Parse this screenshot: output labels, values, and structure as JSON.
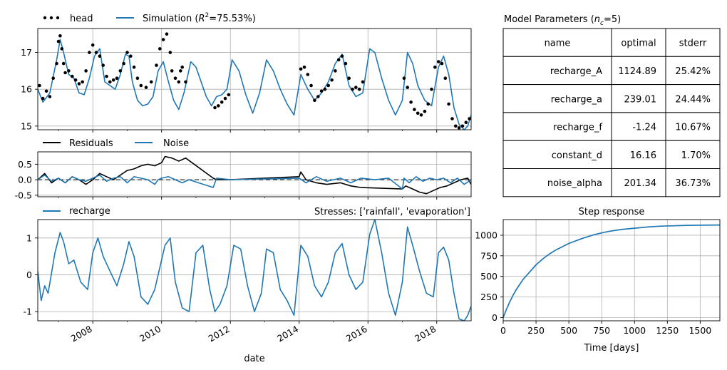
{
  "colors": {
    "head": "#000000",
    "simulation": "#1f77b4",
    "residuals": "#000000",
    "noise": "#1f77b4",
    "recharge": "#1f77b4",
    "step": "#1f77b4"
  },
  "params_title": "Model Parameters ($n_c$=5)",
  "params_title_main": "Model Parameters (",
  "params_title_sym": "n",
  "params_title_sub": "c",
  "params_title_tail": "=5)",
  "table": {
    "headers": [
      "name",
      "optimal",
      "stderr"
    ],
    "rows": [
      [
        "recharge_A",
        "1124.89",
        "25.42%"
      ],
      [
        "recharge_a",
        "239.01",
        "24.44%"
      ],
      [
        "recharge_f",
        "-1.24",
        "10.67%"
      ],
      [
        "constant_d",
        "16.16",
        "1.70%"
      ],
      [
        "noise_alpha",
        "201.34",
        "36.73%"
      ]
    ]
  },
  "chart_data": [
    {
      "id": "head_panel",
      "type": "line",
      "xlim": [
        2006.4,
        2019.0
      ],
      "ylim": [
        14.9,
        17.65
      ],
      "yticks": [
        "15",
        "16",
        "17"
      ],
      "grid": true,
      "legend": {
        "entries": [
          "head",
          "Simulation ($R^2$=75.53%)"
        ],
        "placement": "top-left above axes"
      },
      "legend_head": "head",
      "legend_sim_main": "Simulation (",
      "legend_sim_sym": "R",
      "legend_sim_sup": "2",
      "legend_sim_tail": "=75.53%)",
      "series": [
        {
          "name": "Simulation ($R^2$=75.53%)",
          "style": "line",
          "x": [
            2006.4,
            2006.55,
            2006.75,
            2006.95,
            2007.05,
            2007.15,
            2007.3,
            2007.45,
            2007.6,
            2007.75,
            2007.9,
            2008.05,
            2008.2,
            2008.35,
            2008.5,
            2008.65,
            2008.8,
            2008.95,
            2009.05,
            2009.15,
            2009.3,
            2009.45,
            2009.6,
            2009.75,
            2009.9,
            2010.05,
            2010.2,
            2010.35,
            2010.5,
            2010.65,
            2010.85,
            2011.0,
            2011.15,
            2011.3,
            2011.45,
            2011.6,
            2011.75,
            2011.9,
            2012.05,
            2012.25,
            2012.45,
            2012.65,
            2012.85,
            2013.05,
            2013.25,
            2013.45,
            2013.65,
            2013.85,
            2014.05,
            2014.25,
            2014.45,
            2014.65,
            2014.85,
            2015.05,
            2015.25,
            2015.45,
            2015.65,
            2015.85,
            2016.05,
            2016.2,
            2016.4,
            2016.6,
            2016.8,
            2017.0,
            2017.15,
            2017.3,
            2017.45,
            2017.65,
            2017.85,
            2018.05,
            2018.2,
            2018.35,
            2018.5,
            2018.65,
            2018.8,
            2018.9,
            2019.0
          ],
          "y": [
            16.0,
            15.65,
            15.9,
            16.8,
            17.35,
            17.0,
            16.4,
            16.3,
            15.9,
            15.85,
            16.3,
            16.9,
            17.1,
            16.2,
            16.1,
            16.0,
            16.4,
            16.95,
            16.9,
            16.2,
            15.7,
            15.55,
            15.6,
            15.8,
            16.5,
            16.75,
            16.2,
            15.7,
            15.45,
            15.9,
            16.75,
            16.6,
            16.2,
            15.8,
            15.55,
            15.8,
            15.85,
            16.0,
            16.8,
            16.5,
            15.85,
            15.35,
            15.9,
            16.8,
            16.5,
            16.0,
            15.6,
            15.3,
            16.4,
            16.0,
            15.7,
            15.9,
            16.2,
            16.7,
            16.95,
            16.1,
            15.8,
            15.9,
            17.1,
            17.0,
            16.3,
            15.7,
            15.3,
            15.7,
            17.0,
            16.7,
            16.1,
            15.7,
            15.55,
            16.6,
            16.9,
            16.4,
            15.5,
            15.05,
            14.9,
            15.0,
            15.3
          ]
        },
        {
          "name": "head",
          "style": "dots",
          "x": [
            2006.45,
            2006.55,
            2006.65,
            2006.75,
            2006.85,
            2006.95,
            2007.0,
            2007.05,
            2007.1,
            2007.15,
            2007.2,
            2007.3,
            2007.4,
            2007.5,
            2007.6,
            2007.7,
            2007.8,
            2007.9,
            2008.0,
            2008.1,
            2008.2,
            2008.3,
            2008.4,
            2008.5,
            2008.6,
            2008.7,
            2008.8,
            2008.9,
            2009.0,
            2009.1,
            2009.2,
            2009.3,
            2009.4,
            2009.55,
            2009.7,
            2009.85,
            2009.95,
            2010.05,
            2010.15,
            2010.25,
            2010.3,
            2010.4,
            2010.5,
            2010.55,
            2010.6,
            2010.7,
            2011.55,
            2011.65,
            2011.75,
            2011.85,
            2011.95,
            2014.05,
            2014.15,
            2014.25,
            2014.35,
            2014.45,
            2014.55,
            2014.65,
            2014.75,
            2014.85,
            2014.95,
            2015.05,
            2015.15,
            2015.25,
            2015.35,
            2015.45,
            2015.55,
            2015.65,
            2015.75,
            2015.85,
            2017.05,
            2017.15,
            2017.25,
            2017.35,
            2017.45,
            2017.55,
            2017.65,
            2017.75,
            2017.85,
            2017.95,
            2018.05,
            2018.15,
            2018.25,
            2018.35,
            2018.45,
            2018.55,
            2018.65,
            2018.75,
            2018.85,
            2018.95
          ],
          "y": [
            16.1,
            15.75,
            15.95,
            15.8,
            16.3,
            16.7,
            17.3,
            17.45,
            17.1,
            16.7,
            16.45,
            16.5,
            16.35,
            16.25,
            16.15,
            16.2,
            16.5,
            17.0,
            17.2,
            17.0,
            16.9,
            16.65,
            16.35,
            16.2,
            16.25,
            16.3,
            16.5,
            16.7,
            17.0,
            16.9,
            16.6,
            16.3,
            16.1,
            16.05,
            16.2,
            16.65,
            17.1,
            17.35,
            17.5,
            17.0,
            16.5,
            16.3,
            16.2,
            16.5,
            16.6,
            16.2,
            15.5,
            15.55,
            15.65,
            15.75,
            15.85,
            16.55,
            16.6,
            16.4,
            16.1,
            15.7,
            15.8,
            15.95,
            16.0,
            16.1,
            16.25,
            16.5,
            16.8,
            16.9,
            16.7,
            16.3,
            16.0,
            16.05,
            16.0,
            16.2,
            16.3,
            16.05,
            15.65,
            15.45,
            15.35,
            15.3,
            15.4,
            15.6,
            16.0,
            16.6,
            16.75,
            16.7,
            16.3,
            15.6,
            15.2,
            15.0,
            14.95,
            15.0,
            15.1,
            15.2
          ]
        }
      ]
    },
    {
      "id": "residuals_panel",
      "type": "line",
      "xlim": [
        2006.4,
        2019.0
      ],
      "ylim": [
        -0.55,
        0.9
      ],
      "yticks": [
        "0.5",
        "0.0",
        "-0.5"
      ],
      "grid": true,
      "zero_line": true,
      "legend": {
        "entries": [
          "Residuals",
          "Noise"
        ],
        "placement": "top-left above axes"
      },
      "series": [
        {
          "name": "Residuals",
          "x": [
            2006.4,
            2006.6,
            2006.8,
            2007.0,
            2007.2,
            2007.4,
            2007.6,
            2007.8,
            2008.0,
            2008.2,
            2008.4,
            2008.6,
            2008.8,
            2009.0,
            2009.2,
            2009.4,
            2009.6,
            2009.8,
            2010.0,
            2010.1,
            2010.3,
            2010.5,
            2010.7,
            2011.5,
            2011.6,
            2012.0,
            2014.0,
            2014.05,
            2014.2,
            2014.5,
            2014.8,
            2015.2,
            2015.5,
            2015.8,
            2017.0,
            2017.1,
            2017.3,
            2017.5,
            2017.7,
            2017.9,
            2018.1,
            2018.3,
            2018.5,
            2018.7,
            2018.9,
            2019.0
          ],
          "y": [
            0.0,
            0.2,
            -0.1,
            0.05,
            -0.1,
            0.1,
            0.0,
            -0.15,
            0.0,
            0.2,
            0.1,
            0.0,
            0.15,
            0.3,
            0.35,
            0.45,
            0.5,
            0.45,
            0.55,
            0.75,
            0.7,
            0.6,
            0.7,
            0.05,
            0.0,
            0.0,
            0.1,
            0.25,
            0.0,
            -0.1,
            -0.15,
            -0.1,
            -0.2,
            -0.25,
            -0.3,
            -0.2,
            -0.3,
            -0.4,
            -0.45,
            -0.35,
            -0.25,
            -0.2,
            -0.1,
            0.0,
            0.05,
            -0.15
          ]
        },
        {
          "name": "Noise",
          "x": [
            2006.4,
            2006.6,
            2006.8,
            2007.0,
            2007.2,
            2007.4,
            2007.6,
            2007.8,
            2008.0,
            2008.2,
            2008.4,
            2008.6,
            2008.8,
            2009.0,
            2009.2,
            2009.4,
            2009.6,
            2009.8,
            2009.9,
            2010.0,
            2010.2,
            2010.4,
            2010.6,
            2010.8,
            2011.5,
            2011.6,
            2012.0,
            2014.0,
            2014.2,
            2014.5,
            2014.8,
            2015.2,
            2015.5,
            2015.8,
            2016.2,
            2016.6,
            2017.0,
            2017.05,
            2017.2,
            2017.4,
            2017.6,
            2017.8,
            2018.0,
            2018.2,
            2018.4,
            2018.6,
            2018.8,
            2019.0
          ],
          "y": [
            0.0,
            0.15,
            -0.05,
            0.05,
            -0.1,
            0.1,
            0.0,
            -0.05,
            0.05,
            0.15,
            -0.05,
            0.05,
            0.1,
            -0.1,
            0.1,
            0.05,
            0.0,
            -0.15,
            0.0,
            0.05,
            0.1,
            0.0,
            -0.1,
            0.0,
            -0.25,
            0.05,
            0.0,
            0.05,
            -0.1,
            0.1,
            -0.05,
            0.05,
            -0.1,
            0.05,
            0.0,
            0.05,
            -0.3,
            0.05,
            -0.1,
            0.1,
            -0.05,
            0.05,
            0.0,
            0.05,
            -0.1,
            0.05,
            -0.15,
            0.0
          ]
        }
      ]
    },
    {
      "id": "recharge_panel",
      "type": "line",
      "xlim": [
        2006.4,
        2019.0
      ],
      "ylim": [
        -1.25,
        1.5
      ],
      "yticks": [
        "1",
        "0",
        "-1"
      ],
      "xticks": [
        "2008",
        "2010",
        "2012",
        "2014",
        "2016",
        "2018"
      ],
      "xlabel": "date",
      "grid": true,
      "legend": {
        "entries": [
          "recharge"
        ],
        "placement": "top-left above axes"
      },
      "annotation": "Stresses: ['rainfall', 'evaporation']",
      "series": [
        {
          "name": "recharge",
          "x": [
            2006.4,
            2006.5,
            2006.6,
            2006.7,
            2006.9,
            2007.05,
            2007.15,
            2007.3,
            2007.45,
            2007.65,
            2007.85,
            2008.0,
            2008.15,
            2008.3,
            2008.5,
            2008.7,
            2008.9,
            2009.05,
            2009.2,
            2009.4,
            2009.6,
            2009.8,
            2009.95,
            2010.1,
            2010.25,
            2010.4,
            2010.6,
            2010.8,
            2011.0,
            2011.2,
            2011.4,
            2011.55,
            2011.7,
            2011.9,
            2012.1,
            2012.3,
            2012.5,
            2012.7,
            2012.9,
            2013.05,
            2013.25,
            2013.45,
            2013.65,
            2013.85,
            2014.05,
            2014.25,
            2014.45,
            2014.65,
            2014.85,
            2015.05,
            2015.25,
            2015.45,
            2015.65,
            2015.85,
            2016.05,
            2016.2,
            2016.4,
            2016.6,
            2016.8,
            2017.0,
            2017.15,
            2017.3,
            2017.5,
            2017.7,
            2017.9,
            2018.05,
            2018.2,
            2018.35,
            2018.5,
            2018.65,
            2018.8,
            2018.9,
            2019.0
          ],
          "y": [
            0.1,
            -0.7,
            -0.3,
            -0.5,
            0.6,
            1.15,
            0.9,
            0.3,
            0.4,
            -0.2,
            -0.4,
            0.6,
            1.0,
            0.5,
            0.1,
            -0.3,
            0.3,
            0.9,
            0.5,
            -0.6,
            -0.8,
            -0.4,
            0.2,
            0.8,
            1.0,
            -0.2,
            -0.9,
            -1.0,
            0.6,
            0.8,
            -0.4,
            -1.0,
            -0.8,
            -0.3,
            0.8,
            0.7,
            -0.3,
            -1.0,
            -0.5,
            0.7,
            0.6,
            -0.4,
            -0.7,
            -1.1,
            0.8,
            0.5,
            -0.3,
            -0.6,
            -0.2,
            0.6,
            0.85,
            0.0,
            -0.4,
            -0.2,
            1.1,
            1.5,
            0.6,
            -0.5,
            -1.1,
            -0.2,
            1.3,
            0.8,
            0.1,
            -0.5,
            -0.6,
            0.6,
            0.75,
            0.4,
            -0.5,
            -1.2,
            -1.25,
            -1.1,
            -0.85
          ]
        }
      ]
    },
    {
      "id": "step_panel",
      "type": "line",
      "title": "Step response",
      "xlim": [
        0,
        1650
      ],
      "ylim": [
        -40,
        1190
      ],
      "xticks": [
        "0",
        "250",
        "500",
        "750",
        "1000",
        "1250",
        "1500"
      ],
      "yticks": [
        "0",
        "250",
        "500",
        "750",
        "1000"
      ],
      "xlabel": "Time [days]",
      "grid": true,
      "series": [
        {
          "name": "step",
          "x": [
            0,
            25,
            50,
            75,
            100,
            150,
            200,
            250,
            300,
            350,
            400,
            450,
            500,
            600,
            700,
            800,
            900,
            1000,
            1100,
            1200,
            1300,
            1400,
            1500,
            1650
          ],
          "y": [
            0,
            100,
            190,
            270,
            340,
            460,
            550,
            640,
            710,
            770,
            820,
            860,
            900,
            960,
            1010,
            1045,
            1070,
            1085,
            1100,
            1110,
            1115,
            1120,
            1122,
            1124
          ]
        }
      ]
    }
  ]
}
